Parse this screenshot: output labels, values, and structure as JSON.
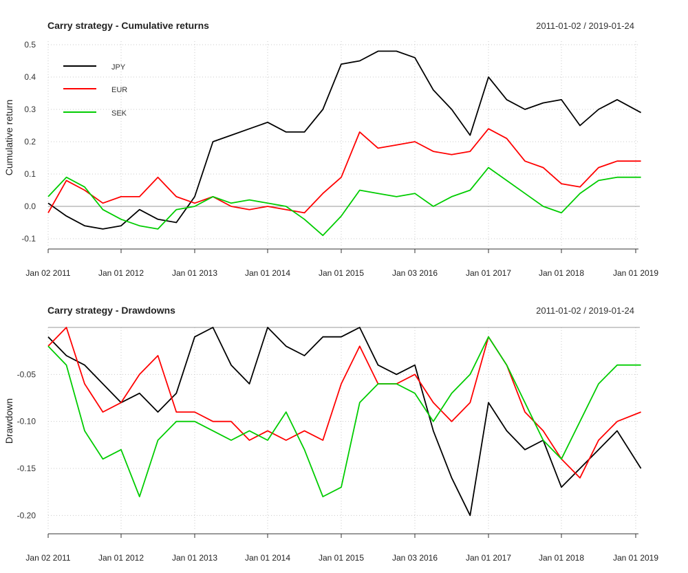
{
  "chart_data": [
    {
      "type": "line",
      "title": "Carry strategy - Cumulative returns",
      "date_range": "2011-01-02 / 2019-01-24",
      "xlabel": "",
      "ylabel": "Cumulative return",
      "ylim": [
        -0.1,
        0.5
      ],
      "yticks": [
        "-0.1",
        "0.0",
        "0.1",
        "0.2",
        "0.3",
        "0.4",
        "0.5"
      ],
      "xticks": [
        "Jan 02 2011",
        "Jan 01 2012",
        "Jan 01 2013",
        "Jan 01 2014",
        "Jan 01 2015",
        "Jan 03 2016",
        "Jan 01 2017",
        "Jan 01 2018",
        "Jan 01 2019"
      ],
      "grid": true,
      "legend_position": "top-left",
      "x": [
        2011.0,
        2011.25,
        2011.5,
        2011.75,
        2012.0,
        2012.25,
        2012.5,
        2012.75,
        2013.0,
        2013.25,
        2013.5,
        2013.75,
        2014.0,
        2014.25,
        2014.5,
        2014.75,
        2015.0,
        2015.25,
        2015.5,
        2015.75,
        2016.0,
        2016.25,
        2016.5,
        2016.75,
        2017.0,
        2017.25,
        2017.5,
        2017.75,
        2018.0,
        2018.25,
        2018.5,
        2018.75,
        2019.07
      ],
      "series": [
        {
          "name": "JPY",
          "color": "#000000",
          "values": [
            0.01,
            -0.03,
            -0.06,
            -0.07,
            -0.06,
            -0.01,
            -0.04,
            -0.05,
            0.03,
            0.2,
            0.22,
            0.24,
            0.26,
            0.23,
            0.23,
            0.3,
            0.44,
            0.45,
            0.48,
            0.48,
            0.46,
            0.36,
            0.3,
            0.22,
            0.4,
            0.33,
            0.3,
            0.32,
            0.33,
            0.25,
            0.3,
            0.33,
            0.29
          ]
        },
        {
          "name": "EUR",
          "color": "#ff0000",
          "values": [
            -0.02,
            0.08,
            0.05,
            0.01,
            0.03,
            0.03,
            0.09,
            0.03,
            0.01,
            0.03,
            0.0,
            -0.01,
            0.0,
            -0.01,
            -0.02,
            0.04,
            0.09,
            0.23,
            0.18,
            0.19,
            0.2,
            0.17,
            0.16,
            0.17,
            0.24,
            0.21,
            0.14,
            0.12,
            0.07,
            0.06,
            0.12,
            0.14,
            0.14
          ]
        },
        {
          "name": "SEK",
          "color": "#00cc00",
          "values": [
            0.03,
            0.09,
            0.06,
            -0.01,
            -0.04,
            -0.06,
            -0.07,
            -0.01,
            0.0,
            0.03,
            0.01,
            0.02,
            0.01,
            0.0,
            -0.04,
            -0.09,
            -0.03,
            0.05,
            0.04,
            0.03,
            0.04,
            0.0,
            0.03,
            0.05,
            0.12,
            0.08,
            0.04,
            0.0,
            -0.02,
            0.04,
            0.08,
            0.09,
            0.09
          ]
        }
      ]
    },
    {
      "type": "line",
      "title": "Carry strategy - Drawdowns",
      "date_range": "2011-01-02 / 2019-01-24",
      "xlabel": "",
      "ylabel": "Drawdown",
      "ylim": [
        -0.21,
        0.0
      ],
      "yticks": [
        "-0.20",
        "-0.15",
        "-0.10",
        "-0.05"
      ],
      "xticks": [
        "Jan 02 2011",
        "Jan 01 2012",
        "Jan 01 2013",
        "Jan 01 2014",
        "Jan 01 2015",
        "Jan 03 2016",
        "Jan 01 2017",
        "Jan 01 2018",
        "Jan 01 2019"
      ],
      "grid": true,
      "x": [
        2011.0,
        2011.25,
        2011.5,
        2011.75,
        2012.0,
        2012.25,
        2012.5,
        2012.75,
        2013.0,
        2013.25,
        2013.5,
        2013.75,
        2014.0,
        2014.25,
        2014.5,
        2014.75,
        2015.0,
        2015.25,
        2015.5,
        2015.75,
        2016.0,
        2016.25,
        2016.5,
        2016.75,
        2017.0,
        2017.25,
        2017.5,
        2017.75,
        2018.0,
        2018.25,
        2018.5,
        2018.75,
        2019.07
      ],
      "series": [
        {
          "name": "JPY",
          "color": "#000000",
          "values": [
            -0.01,
            -0.03,
            -0.04,
            -0.06,
            -0.08,
            -0.07,
            -0.09,
            -0.07,
            -0.01,
            0.0,
            -0.04,
            -0.06,
            0.0,
            -0.02,
            -0.03,
            -0.01,
            -0.01,
            0.0,
            -0.04,
            -0.05,
            -0.04,
            -0.11,
            -0.16,
            -0.2,
            -0.08,
            -0.11,
            -0.13,
            -0.12,
            -0.17,
            -0.15,
            -0.13,
            -0.11,
            -0.15
          ]
        },
        {
          "name": "EUR",
          "color": "#ff0000",
          "values": [
            -0.02,
            0.0,
            -0.06,
            -0.09,
            -0.08,
            -0.05,
            -0.03,
            -0.09,
            -0.09,
            -0.1,
            -0.1,
            -0.12,
            -0.11,
            -0.12,
            -0.11,
            -0.12,
            -0.06,
            -0.02,
            -0.06,
            -0.06,
            -0.05,
            -0.08,
            -0.1,
            -0.08,
            -0.01,
            -0.04,
            -0.09,
            -0.11,
            -0.14,
            -0.16,
            -0.12,
            -0.1,
            -0.09
          ]
        },
        {
          "name": "SEK",
          "color": "#00cc00",
          "values": [
            -0.02,
            -0.04,
            -0.11,
            -0.14,
            -0.13,
            -0.18,
            -0.12,
            -0.1,
            -0.1,
            -0.11,
            -0.12,
            -0.11,
            -0.12,
            -0.09,
            -0.13,
            -0.18,
            -0.17,
            -0.08,
            -0.06,
            -0.06,
            -0.07,
            -0.1,
            -0.07,
            -0.05,
            -0.01,
            -0.04,
            -0.08,
            -0.12,
            -0.14,
            -0.1,
            -0.06,
            -0.04,
            -0.04
          ]
        }
      ]
    }
  ]
}
